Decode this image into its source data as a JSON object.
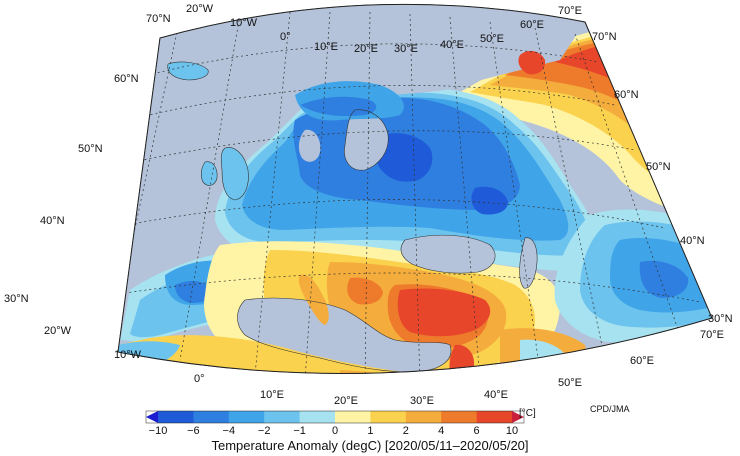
{
  "map": {
    "title": "Temperature Anomaly (degC) [2020/05/11–2020/05/20]",
    "credit": "CPD/JMA",
    "unit": "[°C]",
    "lat_labels_left": [
      "70°N",
      "60°N",
      "50°N",
      "40°N",
      "30°N"
    ],
    "lat_labels_right": [
      "70°N",
      "60°N",
      "50°N",
      "40°N",
      "30°N"
    ],
    "lon_labels_top": [
      "20°W",
      "10°W",
      "0°",
      "10°E",
      "20°E",
      "30°E",
      "40°E",
      "50°E",
      "60°E",
      "70°E"
    ],
    "lon_labels_bottom": [
      "20°W",
      "10°W",
      "0°",
      "10°E",
      "20°E",
      "30°E",
      "40°E",
      "50°E",
      "60°E",
      "70°E"
    ],
    "colors": {
      "ocean": "#b4c3da",
      "c_lt_m6": "#1f5bd8",
      "c_m6_m4": "#2f7fe0",
      "c_m4_m2": "#3fa4e8",
      "c_m2_m1": "#6cc3ee",
      "c_m1_0": "#a6e2f0",
      "c_0_1": "#fff4a6",
      "c_1_2": "#fbd24e",
      "c_2_4": "#f4ad3c",
      "c_4_6": "#ee7b2c",
      "c_6_10": "#e8462b",
      "c_gt_10": "#c81f3a"
    },
    "colorbar": {
      "ticks": [
        "−10",
        "−6",
        "−4",
        "−2",
        "−1",
        "0",
        "1",
        "2",
        "4",
        "6",
        "10"
      ],
      "colors": [
        "#1c1cd0",
        "#1f5bd8",
        "#2f7fe0",
        "#3fa4e8",
        "#6cc3ee",
        "#a6e2f0",
        "#fff4a6",
        "#fbd24e",
        "#f4ad3c",
        "#ee7b2c",
        "#e8462b",
        "#c81f3a"
      ]
    }
  }
}
